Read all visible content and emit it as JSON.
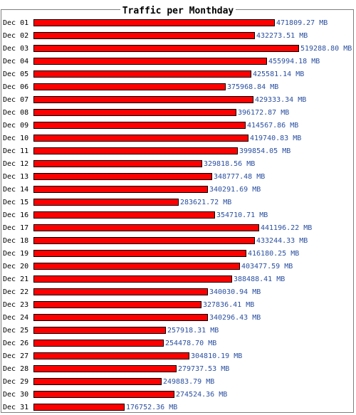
{
  "chart_data": {
    "type": "bar",
    "orientation": "horizontal",
    "title": "Traffic per Monthday",
    "unit": "MB",
    "categories": [
      "Dec 01",
      "Dec 02",
      "Dec 03",
      "Dec 04",
      "Dec 05",
      "Dec 06",
      "Dec 07",
      "Dec 08",
      "Dec 09",
      "Dec 10",
      "Dec 11",
      "Dec 12",
      "Dec 13",
      "Dec 14",
      "Dec 15",
      "Dec 16",
      "Dec 17",
      "Dec 18",
      "Dec 19",
      "Dec 20",
      "Dec 21",
      "Dec 22",
      "Dec 23",
      "Dec 24",
      "Dec 25",
      "Dec 26",
      "Dec 27",
      "Dec 28",
      "Dec 29",
      "Dec 30",
      "Dec 31"
    ],
    "values": [
      471809.27,
      432273.51,
      519288.8,
      455994.18,
      425581.14,
      375968.84,
      429333.34,
      396172.87,
      414567.86,
      419740.83,
      399854.05,
      329818.56,
      348777.48,
      340291.69,
      283621.72,
      354710.71,
      441196.22,
      433244.33,
      416180.25,
      403477.59,
      388488.41,
      340030.94,
      327836.41,
      340296.43,
      257918.31,
      254478.7,
      304810.19,
      279737.53,
      249883.79,
      274524.36,
      176752.36
    ],
    "value_labels": [
      "471809.27 MB",
      "432273.51 MB",
      "519288.80 MB",
      "455994.18 MB",
      "425581.14 MB",
      "375968.84 MB",
      "429333.34 MB",
      "396172.87 MB",
      "414567.86 MB",
      "419740.83 MB",
      "399854.05 MB",
      "329818.56 MB",
      "348777.48 MB",
      "340291.69 MB",
      "283621.72 MB",
      "354710.71 MB",
      "441196.22 MB",
      "433244.33 MB",
      "416180.25 MB",
      "403477.59 MB",
      "388488.41 MB",
      "340030.94 MB",
      "327836.41 MB",
      "340296.43 MB",
      "257918.31 MB",
      "254478.70 MB",
      "304810.19 MB",
      "279737.53 MB",
      "249883.79 MB",
      "274524.36 MB",
      "176752.36 MB"
    ],
    "bar_color": "#ff0000",
    "bar_border_color": "#000000",
    "value_label_color": "#2a4fa0",
    "frame_color": "#7f7f7f",
    "grid": false,
    "legend": "none"
  }
}
